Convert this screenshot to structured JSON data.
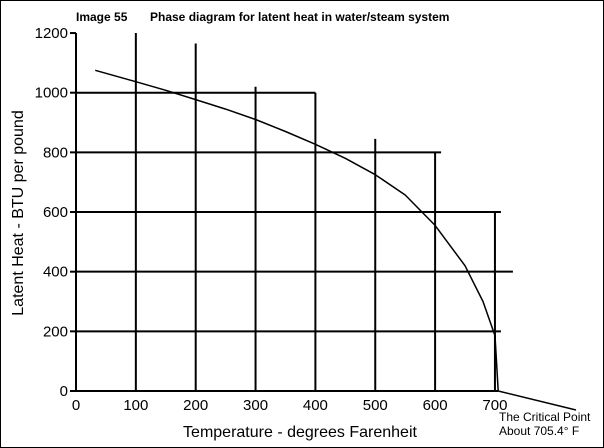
{
  "chart_data": {
    "type": "line",
    "title_prefix": "Image 55",
    "title": "Phase diagram for latent heat in water/steam system",
    "xlabel": "Temperature - degrees Farenheit",
    "ylabel": "Latent Heat - BTU per pound",
    "xlim": [
      0,
      705.4
    ],
    "ylim": [
      0,
      1200
    ],
    "x_ticks": [
      "0",
      "100",
      "200",
      "300",
      "400",
      "500",
      "600",
      "700"
    ],
    "y_ticks": [
      "0",
      "200",
      "400",
      "600",
      "800",
      "1000",
      "1200"
    ],
    "grid_lines": [
      {
        "y": 1000,
        "x_end": 400
      },
      {
        "y": 800,
        "x_end": 610
      },
      {
        "y": 600,
        "x_end": 710
      },
      {
        "y": 400,
        "x_end": 730
      },
      {
        "y": 200,
        "x_end": 710
      }
    ],
    "vertical_lines": [
      {
        "x": 100,
        "y_top": 1200
      },
      {
        "x": 200,
        "y_top": 1165
      },
      {
        "x": 300,
        "y_top": 1020
      },
      {
        "x": 400,
        "y_top": 1000
      },
      {
        "x": 500,
        "y_top": 845
      },
      {
        "x": 600,
        "y_top": 800
      },
      {
        "x": 700,
        "y_top": 600
      }
    ],
    "series": [
      {
        "x": [
          32,
          100,
          150,
          200,
          250,
          300,
          350,
          400,
          450,
          500,
          550,
          600,
          650,
          680,
          700,
          705.4
        ],
        "y": [
          1075,
          1037,
          1008,
          977,
          945,
          910,
          870,
          827,
          780,
          725,
          657,
          555,
          420,
          300,
          185,
          0
        ]
      }
    ],
    "annotation": {
      "lines": [
        "The Critical Point",
        "About 705.4° F"
      ],
      "x": 705.4,
      "y": 0
    }
  }
}
